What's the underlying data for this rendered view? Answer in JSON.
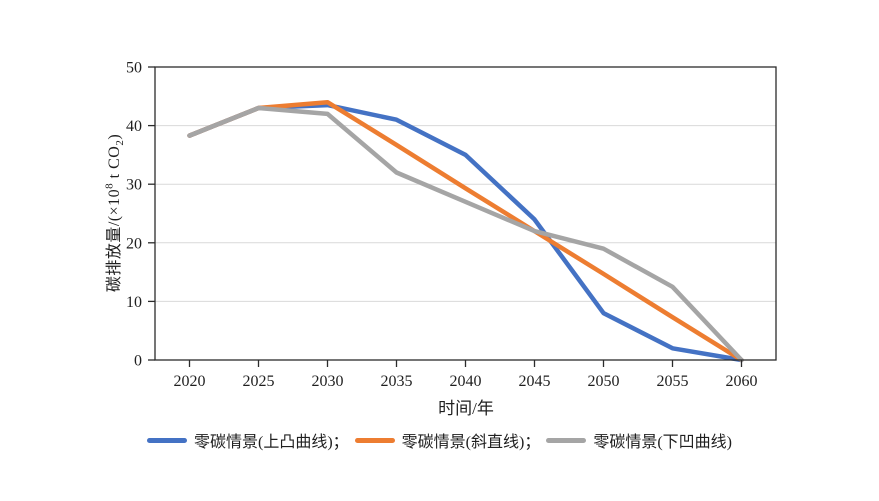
{
  "chart_data": {
    "type": "line",
    "title": "",
    "xlabel": "时间/年",
    "ylabel": "碳排放量/(×10⁸ t CO₂)",
    "ylabel_parts": {
      "prefix": "碳排放量/(×10",
      "sup": "8",
      "mid": " t CO",
      "sub": "2",
      "suffix": ")"
    },
    "x": [
      2020,
      2025,
      2030,
      2035,
      2040,
      2045,
      2050,
      2055,
      2060
    ],
    "x_tick_labels": [
      "2020",
      "2025",
      "2030",
      "2035",
      "2040",
      "2045",
      "2050",
      "2055",
      "2060"
    ],
    "y_ticks": [
      0,
      10,
      20,
      30,
      40,
      50
    ],
    "y_tick_labels": [
      "0",
      "10",
      "20",
      "30",
      "40",
      "50"
    ],
    "xlim": [
      2017.5,
      2062.5
    ],
    "ylim": [
      0,
      50
    ],
    "grid": "horizontal",
    "legend_position": "bottom",
    "series": [
      {
        "name": "零碳情景(上凸曲线)",
        "legend_label": "零碳情景(上凸曲线)；",
        "color": "#4472C4",
        "values": [
          38.3,
          43,
          43.5,
          41,
          35,
          24,
          8,
          2,
          0
        ]
      },
      {
        "name": "零碳情景(斜直线)",
        "legend_label": "零碳情景(斜直线)；",
        "color": "#ED7D31",
        "values": [
          38.3,
          43,
          44,
          36.7,
          29.3,
          22,
          14.7,
          7.3,
          0
        ]
      },
      {
        "name": "零碳情景(下凹曲线)",
        "legend_label": "零碳情景(下凹曲线)",
        "color": "#A5A5A5",
        "values": [
          38.3,
          43,
          42,
          32,
          27,
          22,
          19,
          12.5,
          0
        ]
      }
    ]
  },
  "colors": {
    "axis_box": "#2b2b2b",
    "gridline": "#d9d9d9",
    "text": "#1f1f1f",
    "background": "#ffffff"
  }
}
